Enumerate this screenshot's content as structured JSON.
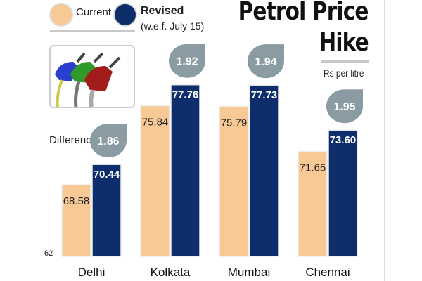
{
  "title_line1": "Petrol Price",
  "title_line2": "Hike",
  "unit": "Rs per litre",
  "legend": {
    "current": "Current",
    "revised": "Revised",
    "revised_note": "(w.e.f. July 15)"
  },
  "difference_label": "Difference",
  "colors": {
    "current": "#f9c995",
    "revised": "#0d2d6b",
    "bubble": "#8a9ba3"
  },
  "chart_data": {
    "type": "bar",
    "categories": [
      "Delhi",
      "Kolkata",
      "Mumbai",
      "Chennai"
    ],
    "series": [
      {
        "name": "Current",
        "values": [
          68.58,
          75.84,
          75.79,
          71.65
        ],
        "labels": [
          "68.58",
          "75.84",
          "75.79",
          "71.65"
        ]
      },
      {
        "name": "Revised",
        "values": [
          70.44,
          77.76,
          77.73,
          73.6
        ],
        "labels": [
          "70.44",
          "77.76",
          "77.73",
          "73.60"
        ]
      }
    ],
    "differences": [
      "1.86",
      "1.92",
      "1.94",
      "1.95"
    ],
    "ylim": [
      62,
      80
    ],
    "baseline_label": "62",
    "grid": false
  }
}
